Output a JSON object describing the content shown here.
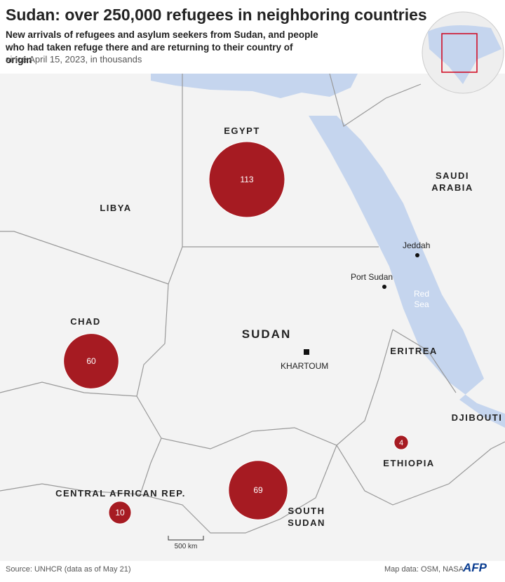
{
  "header": {
    "title": "Sudan: over 250,000 refugees in neighboring countries",
    "subtitle": "New arrivals of refugees and asylum seekers from Sudan, and people who had taken refuge there and are returning to their country of origin",
    "note": "since April 15, 2023, in thousands"
  },
  "bubbles": [
    {
      "value": 113
    },
    {
      "value": 60
    },
    {
      "value": 69
    },
    {
      "value": 10
    },
    {
      "value": 4
    }
  ],
  "countries": [
    "EGYPT",
    "LIBYA",
    "SAUDI ARABIA",
    "CHAD",
    "SUDAN",
    "ERITREA",
    "DJIBOUTI",
    "ETHIOPIA",
    "CENTRAL AFRICAN REP.",
    "SOUTH SUDAN"
  ],
  "places": [
    "Jeddah",
    "Port Sudan",
    "KHARTOUM"
  ],
  "water": "Red Sea",
  "scale": "500 km",
  "footer": {
    "source": "Source: UNHCR (data as of May 21)",
    "credit": "Map data: OSM, NASA",
    "logo": "AFP"
  }
}
